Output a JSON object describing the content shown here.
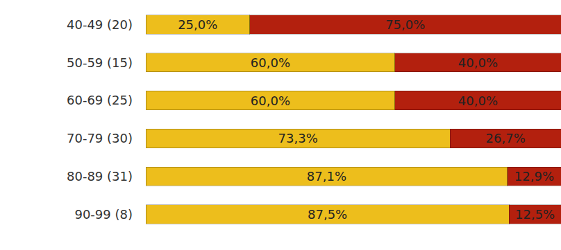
{
  "chart_data": {
    "type": "bar",
    "orientation": "horizontal",
    "stacked": true,
    "data_labels": true,
    "tick_labels": "y",
    "grid": false,
    "categories": [
      "40-49 (20)",
      "50-59 (15)",
      "60-69 (25)",
      "70-79 (30)",
      "80-89 (31)",
      "90-99 (8)"
    ],
    "xlim": [
      0,
      100
    ],
    "series": [
      {
        "color": "#EDBE1C",
        "values": [
          25.0,
          60.0,
          60.0,
          73.3,
          87.1,
          87.5
        ],
        "value_labels": [
          "25,0%",
          "60,0%",
          "60,0%",
          "73,3%",
          "87,1%",
          "87,5%"
        ]
      },
      {
        "color": "#B3200E",
        "values": [
          75.0,
          40.0,
          40.0,
          26.7,
          12.9,
          12.5
        ],
        "value_labels": [
          "75,0%",
          "40,0%",
          "40,0%",
          "26,7%",
          "12,9%",
          "12,5%"
        ]
      }
    ]
  }
}
